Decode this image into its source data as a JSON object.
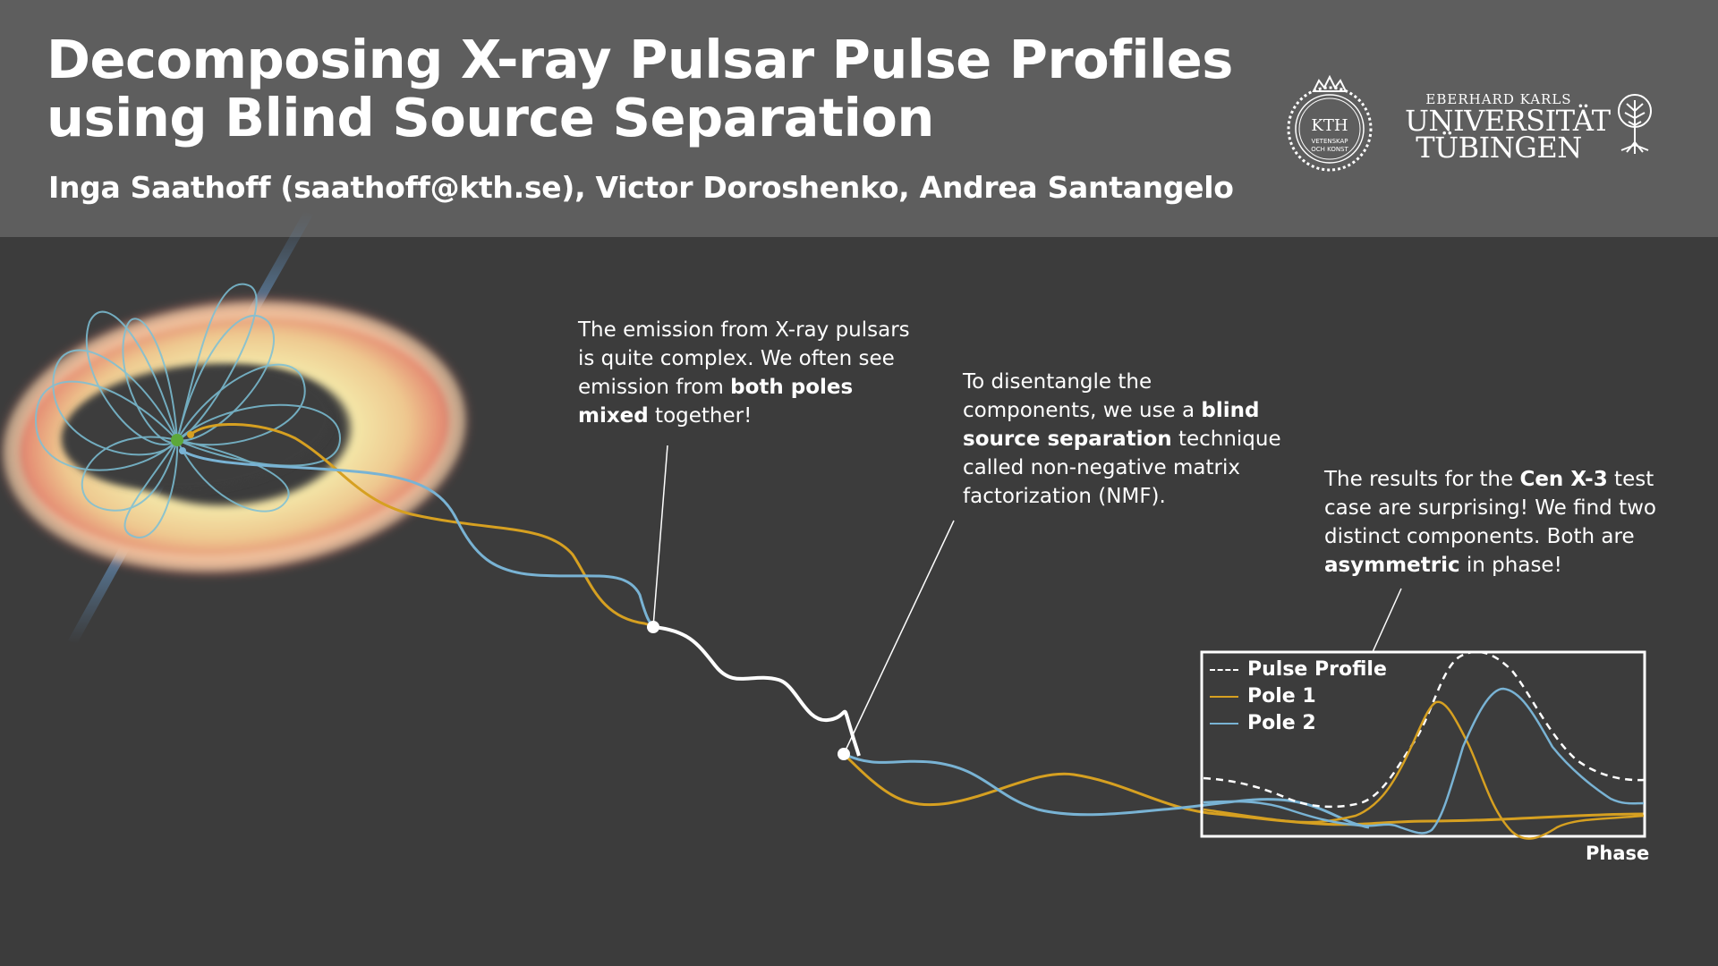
{
  "header": {
    "title_line1": "Decomposing X-ray Pulsar Pulse Profiles",
    "title_line2": "using Blind Source Separation",
    "authors": "Inga Saathoff (saathoff@kth.se), Victor Doroshenko, Andrea Santangelo"
  },
  "logos": {
    "kth": {
      "name": "KTH",
      "sub1": "VETENSKAP",
      "sub2": "OCH KONST"
    },
    "tuebingen": {
      "line1": "EBERHARD KARLS",
      "line2": "UNIVERSITÄT",
      "line3": "TÜBINGEN"
    },
    "tree_icon": "tree-icon"
  },
  "notes": {
    "note1": {
      "pre": "The emission from X-ray pulsars is quite complex. We often see emission from ",
      "bold": "both poles mixed",
      "post": " together!"
    },
    "note2": {
      "pre": "To disentangle the components, we use a ",
      "bold": "blind source separation",
      "post": " technique called non-negative matrix factorization (NMF)."
    },
    "note3": {
      "pre": "The results for the ",
      "bold": "Cen X-3",
      "mid": " test case are surprising! We find two distinct components. Both are ",
      "bold2": "asymmetric",
      "post": " in phase!"
    }
  },
  "legend": {
    "items": [
      {
        "label": "Pulse Profile",
        "color": "#ffffff",
        "style": "dashed"
      },
      {
        "label": "Pole 1",
        "color": "#d6a021",
        "style": "solid"
      },
      {
        "label": "Pole 2",
        "color": "#79b3d4",
        "style": "solid"
      }
    ]
  },
  "axis": {
    "xlabel": "Phase"
  },
  "colors": {
    "pole1": "#d6a021",
    "pole2": "#79b3d4",
    "mixed": "#ffffff",
    "background": "#3c3c3c",
    "header": "#5e5e5e"
  }
}
